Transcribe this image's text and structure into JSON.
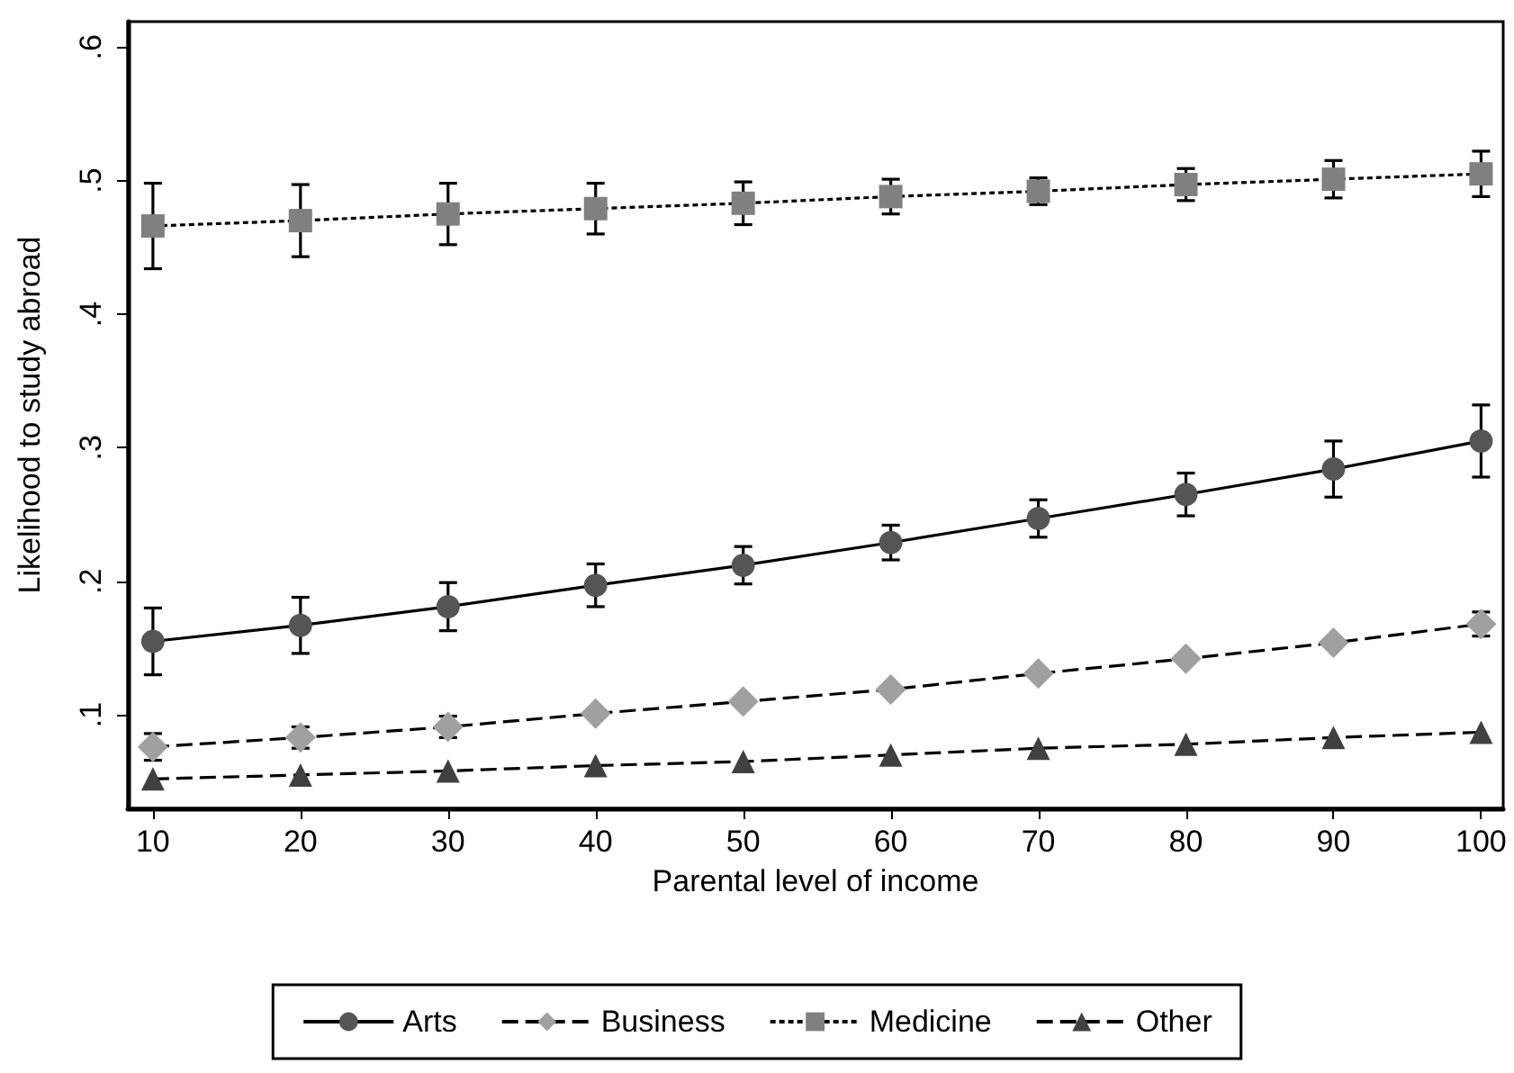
{
  "chart_data": {
    "type": "line",
    "xlabel": "Parental level of income",
    "ylabel": "Likelihood to study abroad",
    "x": [
      10,
      20,
      30,
      40,
      50,
      60,
      70,
      80,
      90,
      100
    ],
    "xlim": [
      8.3,
      101.5
    ],
    "xticks": [
      10,
      20,
      30,
      40,
      50,
      60,
      70,
      80,
      90,
      100
    ],
    "ylim": [
      0.03,
      0.619
    ],
    "yticks": [
      {
        "value": 0.1,
        "label": ".1"
      },
      {
        "value": 0.2,
        "label": ".2"
      },
      {
        "value": 0.3,
        "label": ".3"
      },
      {
        "value": 0.4,
        "label": ".4"
      },
      {
        "value": 0.5,
        "label": ".5"
      },
      {
        "value": 0.6,
        "label": ".6"
      }
    ],
    "grid": false,
    "legend": "bottom",
    "series": [
      {
        "name": "Arts",
        "color": "#555555",
        "marker": "circle",
        "line_style": "solid",
        "values": [
          0.155,
          0.167,
          0.181,
          0.197,
          0.212,
          0.229,
          0.247,
          0.265,
          0.284,
          0.305
        ],
        "errors": [
          0.025,
          0.021,
          0.018,
          0.016,
          0.014,
          0.013,
          0.014,
          0.016,
          0.021,
          0.027
        ]
      },
      {
        "name": "Business",
        "color": "#a0a0a0",
        "marker": "diamond",
        "line_style": "dashed",
        "values": [
          0.076,
          0.083,
          0.091,
          0.101,
          0.11,
          0.119,
          0.131,
          0.142,
          0.154,
          0.168
        ],
        "errors": [
          0.01,
          0.008,
          0.008,
          null,
          null,
          null,
          null,
          null,
          null,
          0.009
        ]
      },
      {
        "name": "Medicine",
        "color": "#808080",
        "marker": "square",
        "line_style": "dotted",
        "values": [
          0.466,
          0.47,
          0.475,
          0.479,
          0.483,
          0.488,
          0.492,
          0.497,
          0.501,
          0.505
        ],
        "errors": [
          0.032,
          0.027,
          0.023,
          0.019,
          0.016,
          0.013,
          0.01,
          0.012,
          0.014,
          0.017
        ]
      },
      {
        "name": "Other",
        "color": "#404040",
        "marker": "triangle",
        "line_style": "dashed",
        "values": [
          0.052,
          0.055,
          0.058,
          0.062,
          0.065,
          0.07,
          0.075,
          0.078,
          0.083,
          0.087
        ]
      }
    ]
  }
}
